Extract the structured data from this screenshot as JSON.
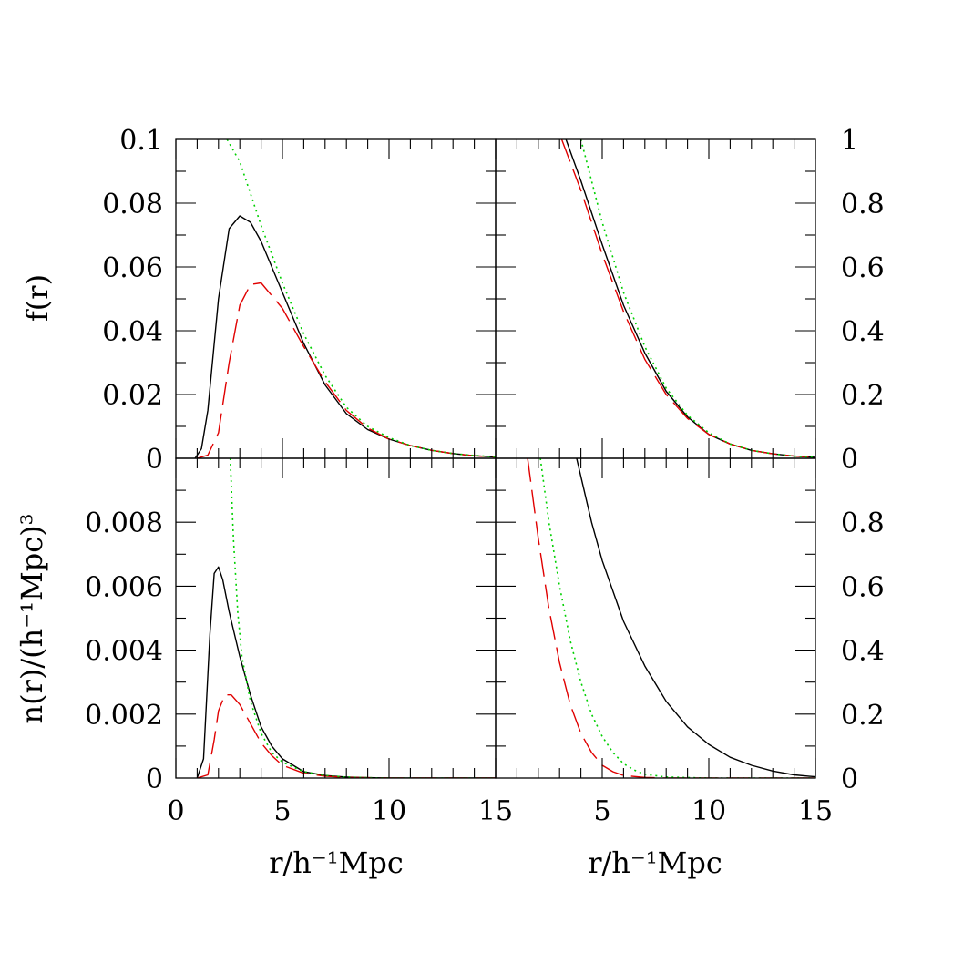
{
  "chart_data": [
    {
      "type": "line",
      "panel": "top-left",
      "xlim": [
        0,
        15
      ],
      "ylim": [
        0,
        0.1
      ],
      "ylabel": "f(r)",
      "xlabel": "",
      "x_ticks": [],
      "y_ticks": [
        "0",
        "0.02",
        "0.04",
        "0.06",
        "0.08",
        "0.1"
      ],
      "y_tick_values": [
        0,
        0.02,
        0.04,
        0.06,
        0.08,
        0.1
      ],
      "series": [
        {
          "style": "solid",
          "color": "#000000",
          "x": [
            0.9,
            1.2,
            1.5,
            2.0,
            2.5,
            3.0,
            3.5,
            4.0,
            5.0,
            6.0,
            7.0,
            8.0,
            9.0,
            10.0,
            11.0,
            12.0,
            13.0,
            14.0,
            15.0
          ],
          "y": [
            0,
            0.003,
            0.015,
            0.05,
            0.072,
            0.076,
            0.074,
            0.068,
            0.052,
            0.036,
            0.023,
            0.014,
            0.009,
            0.006,
            0.004,
            0.0025,
            0.0015,
            0.0008,
            0.0004
          ]
        },
        {
          "style": "dashed",
          "color": "#e00000",
          "x": [
            1.0,
            1.5,
            2.0,
            2.5,
            3.0,
            3.5,
            4.0,
            5.0,
            6.0,
            7.0,
            8.0,
            9.0,
            10.0,
            11.0,
            12.0,
            13.0,
            14.0,
            15.0
          ],
          "y": [
            0,
            0.001,
            0.008,
            0.03,
            0.048,
            0.0545,
            0.055,
            0.047,
            0.035,
            0.024,
            0.015,
            0.0095,
            0.006,
            0.004,
            0.0025,
            0.0015,
            0.0008,
            0.0004
          ]
        },
        {
          "style": "dotted",
          "color": "#00d000",
          "x": [
            2.4,
            3.0,
            3.5,
            4.0,
            5.0,
            6.0,
            7.0,
            8.0,
            9.0,
            10.0,
            11.0,
            12.0,
            13.0,
            14.0,
            15.0
          ],
          "y": [
            0.1,
            0.093,
            0.083,
            0.073,
            0.055,
            0.039,
            0.026,
            0.016,
            0.01,
            0.0065,
            0.004,
            0.0025,
            0.0015,
            0.0009,
            0.0005
          ]
        }
      ]
    },
    {
      "type": "line",
      "panel": "top-right",
      "xlim": [
        0,
        15
      ],
      "ylim": [
        0,
        1
      ],
      "xlabel": "",
      "ylabel": "",
      "x_ticks": [],
      "y_ticks": [
        "0",
        "0.2",
        "0.4",
        "0.6",
        "0.8",
        "1"
      ],
      "y_tick_values": [
        0,
        0.2,
        0.4,
        0.6,
        0.8,
        1
      ],
      "series": [
        {
          "style": "solid",
          "color": "#000000",
          "x": [
            3.3,
            4.0,
            5.0,
            6.0,
            7.0,
            8.0,
            9.0,
            10.0,
            11.0,
            12.0,
            13.0,
            14.0,
            15.0
          ],
          "y": [
            1.0,
            0.87,
            0.67,
            0.48,
            0.33,
            0.21,
            0.13,
            0.075,
            0.045,
            0.025,
            0.014,
            0.007,
            0.003
          ]
        },
        {
          "style": "dashed",
          "color": "#e00000",
          "x": [
            3.1,
            4.0,
            5.0,
            6.0,
            7.0,
            8.0,
            9.0,
            10.0,
            11.0,
            12.0,
            13.0,
            14.0,
            15.0
          ],
          "y": [
            1.0,
            0.84,
            0.64,
            0.46,
            0.31,
            0.2,
            0.125,
            0.075,
            0.045,
            0.025,
            0.014,
            0.007,
            0.003
          ]
        },
        {
          "style": "dotted",
          "color": "#00d000",
          "x": [
            4.0,
            5.0,
            6.0,
            7.0,
            8.0,
            9.0,
            10.0,
            11.0,
            12.0,
            13.0,
            14.0,
            15.0
          ],
          "y": [
            1.0,
            0.74,
            0.52,
            0.35,
            0.22,
            0.135,
            0.08,
            0.045,
            0.025,
            0.014,
            0.007,
            0.003
          ]
        }
      ]
    },
    {
      "type": "line",
      "panel": "bottom-left",
      "xlim": [
        0,
        15
      ],
      "ylim": [
        0,
        0.01
      ],
      "xlabel": "r/h⁻¹Mpc",
      "ylabel": "n(r)/(h⁻¹Mpc)³",
      "x_ticks": [
        "0",
        "5",
        "10",
        "15"
      ],
      "x_tick_values": [
        0,
        5,
        10,
        15
      ],
      "y_ticks": [
        "0",
        "0.002",
        "0.004",
        "0.006",
        "0.008"
      ],
      "y_tick_values": [
        0,
        0.002,
        0.004,
        0.006,
        0.008
      ],
      "series": [
        {
          "style": "solid",
          "color": "#000000",
          "x": [
            1.0,
            1.3,
            1.6,
            1.8,
            2.0,
            2.2,
            2.5,
            3.0,
            3.5,
            4.0,
            4.5,
            5.0,
            6.0,
            7.0,
            8.0,
            9.0,
            10.0,
            12.0,
            15.0
          ],
          "y": [
            0,
            0.0006,
            0.0045,
            0.0064,
            0.0066,
            0.0062,
            0.0052,
            0.0038,
            0.0026,
            0.0016,
            0.001,
            0.0006,
            0.0002,
            8e-05,
            3e-05,
            1e-05,
            0,
            0,
            0
          ]
        },
        {
          "style": "dashed",
          "color": "#e00000",
          "x": [
            1.0,
            1.5,
            1.8,
            2.0,
            2.3,
            2.6,
            3.0,
            3.5,
            4.0,
            4.5,
            5.0,
            6.0,
            7.0,
            8.0,
            9.0,
            10.0,
            12.0,
            15.0
          ],
          "y": [
            0,
            0.0001,
            0.0012,
            0.0021,
            0.0026,
            0.0026,
            0.0023,
            0.0017,
            0.0011,
            0.0007,
            0.0004,
            0.00015,
            6e-05,
            2e-05,
            1e-05,
            0,
            0,
            0
          ]
        },
        {
          "style": "dotted",
          "color": "#00d000",
          "x": [
            2.55,
            2.7,
            2.9,
            3.1,
            3.5,
            4.0,
            4.5,
            5.0,
            6.0,
            7.0,
            8.0,
            9.0,
            10.0,
            12.0,
            15.0
          ],
          "y": [
            0.01,
            0.0075,
            0.0052,
            0.0038,
            0.0024,
            0.0014,
            0.0008,
            0.0005,
            0.0002,
            8e-05,
            3e-05,
            1e-05,
            0,
            0,
            0
          ]
        }
      ]
    },
    {
      "type": "line",
      "panel": "bottom-right",
      "xlim": [
        0,
        15
      ],
      "ylim": [
        0,
        1
      ],
      "xlabel": "r/h⁻¹Mpc",
      "ylabel": "",
      "x_ticks": [
        "5",
        "10",
        "15"
      ],
      "x_tick_values": [
        5,
        10,
        15
      ],
      "y_ticks": [
        "0",
        "0.2",
        "0.4",
        "0.6",
        "0.8"
      ],
      "y_tick_values": [
        0,
        0.2,
        0.4,
        0.6,
        0.8
      ],
      "series": [
        {
          "style": "solid",
          "color": "#000000",
          "x": [
            3.8,
            4.5,
            5.0,
            6.0,
            7.0,
            8.0,
            9.0,
            10.0,
            11.0,
            12.0,
            13.0,
            14.0,
            15.0
          ],
          "y": [
            1.0,
            0.8,
            0.68,
            0.49,
            0.35,
            0.24,
            0.16,
            0.105,
            0.065,
            0.04,
            0.022,
            0.01,
            0.004
          ]
        },
        {
          "style": "dashed",
          "color": "#e00000",
          "x": [
            1.5,
            2.0,
            2.5,
            3.0,
            3.5,
            4.0,
            4.5,
            5.0,
            5.5,
            6.0,
            7.0,
            8.0,
            10.0,
            15.0
          ],
          "y": [
            1.0,
            0.75,
            0.53,
            0.36,
            0.23,
            0.14,
            0.08,
            0.04,
            0.02,
            0.008,
            0.002,
            0,
            0,
            0
          ]
        },
        {
          "style": "dotted",
          "color": "#00d000",
          "x": [
            2.1,
            2.5,
            3.0,
            3.5,
            4.0,
            4.5,
            5.0,
            5.5,
            6.0,
            6.5,
            7.0,
            8.0,
            10.0,
            15.0
          ],
          "y": [
            1.0,
            0.8,
            0.6,
            0.43,
            0.3,
            0.2,
            0.13,
            0.08,
            0.045,
            0.025,
            0.012,
            0.003,
            0,
            0
          ]
        }
      ]
    }
  ]
}
